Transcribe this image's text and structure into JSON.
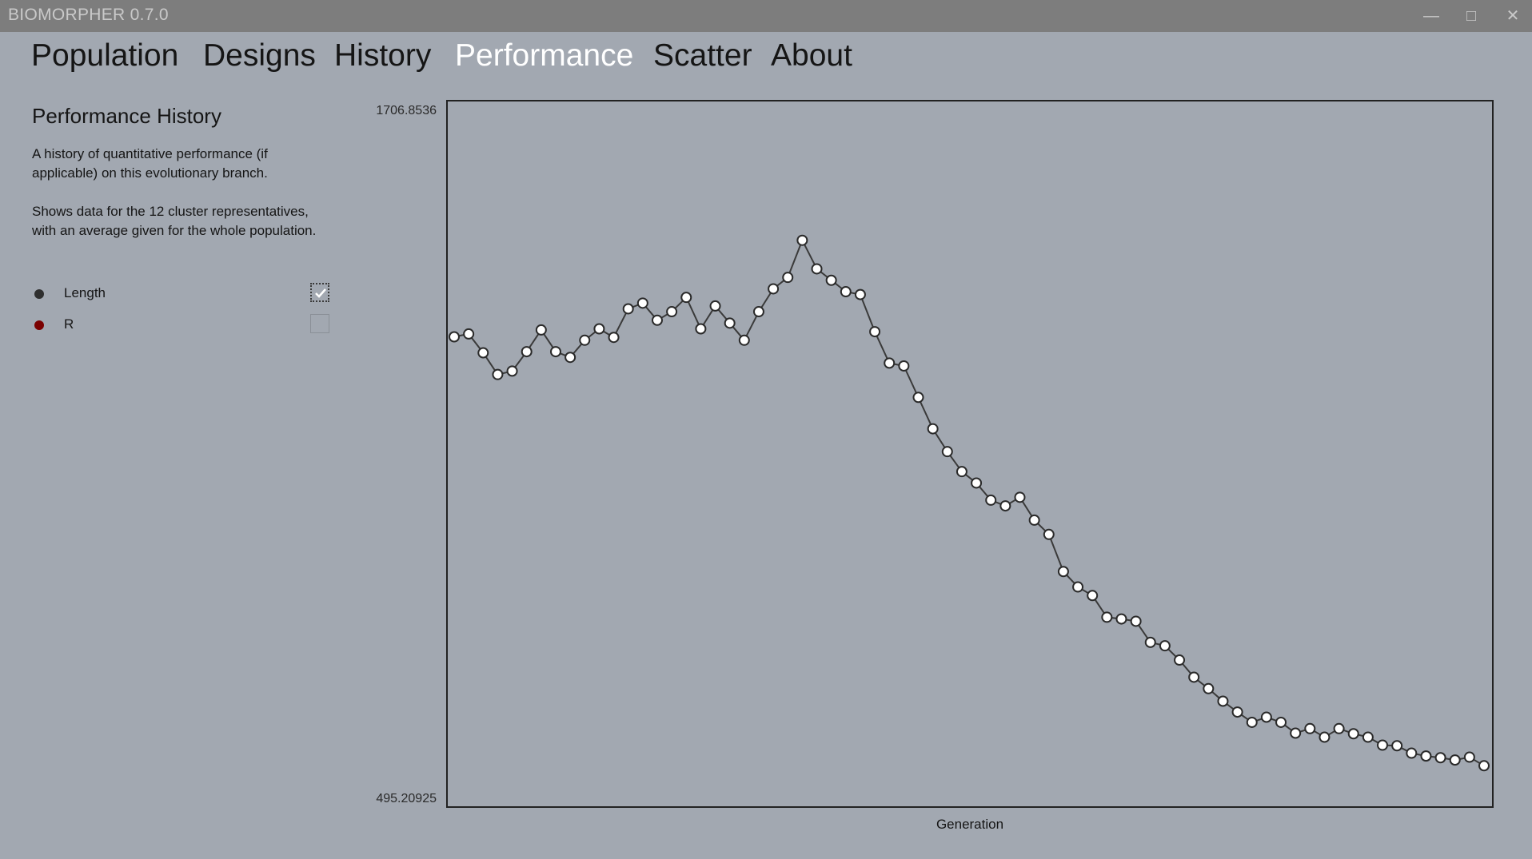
{
  "app": {
    "title": "BIOMORPHER 0.7.0",
    "window_controls": [
      "minimize-icon",
      "maximize-icon",
      "close-icon"
    ]
  },
  "nav": {
    "tabs": [
      {
        "label": "Population",
        "active": false
      },
      {
        "label": "Designs",
        "active": false
      },
      {
        "label": "History",
        "active": false
      },
      {
        "label": "Performance",
        "active": true
      },
      {
        "label": "Scatter",
        "active": false
      },
      {
        "label": "About",
        "active": false
      }
    ]
  },
  "sidebar": {
    "title": "Performance History",
    "desc1": "A history of quantitative performance (if applicable) on this evolutionary branch.",
    "desc2": "Shows data for the 12 cluster representatives, with an average given for the whole population.",
    "legend": [
      {
        "label": "Length",
        "color": "#2f2f2f",
        "checked": true
      },
      {
        "label": "R",
        "color": "#7a0000",
        "checked": false
      }
    ]
  },
  "chart_data": {
    "type": "scatter",
    "xlabel": "Generation",
    "ylabel": "",
    "ylim": [
      495.20925,
      1706.8536
    ],
    "y_max_label": "1706.8536",
    "y_min_label": "495.20925",
    "grid": false,
    "legend": "none",
    "series": [
      {
        "name": "Length",
        "color": "#3a3a3a",
        "average": [
          1306,
          1311,
          1278,
          1240,
          1246,
          1280,
          1318,
          1280,
          1270,
          1300,
          1320,
          1305,
          1355,
          1365,
          1335,
          1350,
          1375,
          1320,
          1360,
          1330,
          1300,
          1350,
          1390,
          1410,
          1475,
          1425,
          1405,
          1385,
          1380,
          1315,
          1260,
          1255,
          1200,
          1145,
          1105,
          1070,
          1050,
          1020,
          1010,
          1025,
          985,
          960,
          895,
          868,
          853,
          815,
          812,
          808,
          771,
          765,
          740,
          710,
          690,
          668,
          649,
          631,
          640,
          631,
          612,
          620,
          605,
          620,
          611,
          605,
          591,
          590,
          577,
          572,
          569,
          565,
          570,
          555
        ]
      }
    ]
  }
}
